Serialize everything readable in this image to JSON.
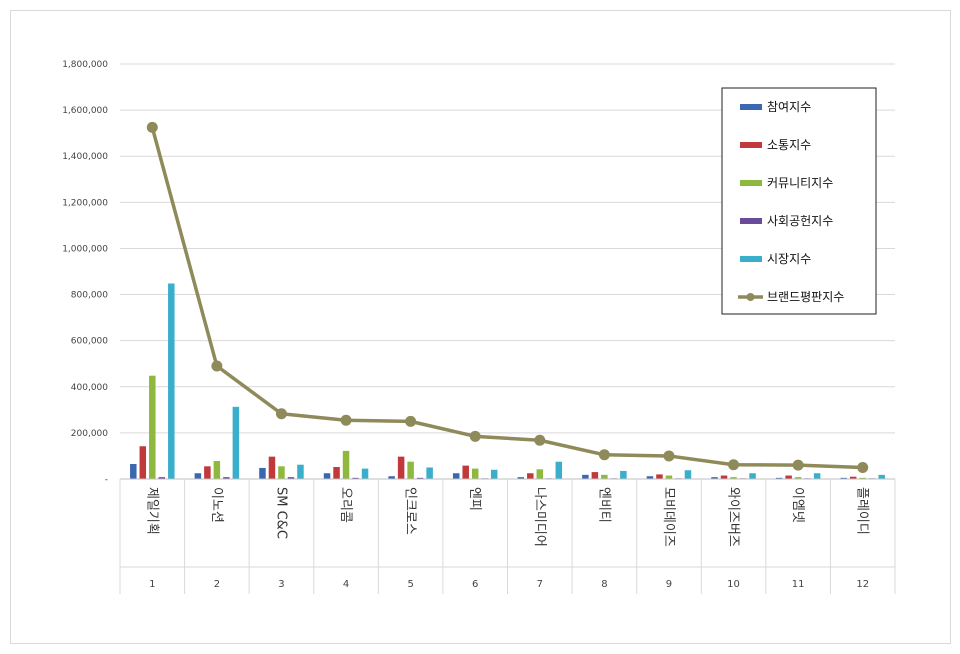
{
  "chart_data": {
    "type": "bar",
    "categories": [
      "제일기획",
      "이노션",
      "SM C&C",
      "오리콤",
      "인크로스",
      "엔피",
      "나스미디어",
      "엔비티",
      "모비데이즈",
      "와이즈버즈",
      "이엠넷",
      "플레이디"
    ],
    "ranks": [
      "1",
      "2",
      "3",
      "4",
      "5",
      "6",
      "7",
      "8",
      "9",
      "10",
      "11",
      "12"
    ],
    "series": [
      {
        "name": "참여지수",
        "type": "bar",
        "color": "#3a68b0",
        "values": [
          65000,
          25000,
          48000,
          25000,
          12000,
          25000,
          8000,
          18000,
          12000,
          8000,
          5000,
          5000
        ]
      },
      {
        "name": "소통지수",
        "type": "bar",
        "color": "#c1393a",
        "values": [
          142000,
          55000,
          97000,
          52000,
          97000,
          58000,
          25000,
          30000,
          20000,
          15000,
          15000,
          10000
        ]
      },
      {
        "name": "커뮤니티지수",
        "type": "bar",
        "color": "#8fb83e",
        "values": [
          448000,
          78000,
          55000,
          122000,
          75000,
          45000,
          42000,
          18000,
          15000,
          8000,
          8000,
          5000
        ]
      },
      {
        "name": "사회공헌지수",
        "type": "bar",
        "color": "#6a4a9b",
        "values": [
          8000,
          8000,
          8000,
          5000,
          5000,
          3000,
          3000,
          3000,
          3000,
          3000,
          3000,
          3000
        ]
      },
      {
        "name": "시장지수",
        "type": "bar",
        "color": "#3aafcc",
        "values": [
          848000,
          313000,
          62000,
          45000,
          50000,
          40000,
          75000,
          35000,
          38000,
          25000,
          25000,
          18000
        ]
      },
      {
        "name": "브랜드평판지수",
        "type": "line",
        "color": "#8f8a5a",
        "values": [
          1525000,
          490000,
          283000,
          255000,
          250000,
          185000,
          168000,
          105000,
          100000,
          62000,
          60000,
          50000
        ]
      }
    ],
    "ylim": [
      0,
      1800000
    ],
    "yticks": [
      {
        "value": 0,
        "label": "-"
      },
      {
        "value": 200000,
        "label": "200,000"
      },
      {
        "value": 400000,
        "label": "400,000"
      },
      {
        "value": 600000,
        "label": "600,000"
      },
      {
        "value": 800000,
        "label": "800,000"
      },
      {
        "value": 1000000,
        "label": "1,000,000"
      },
      {
        "value": 1200000,
        "label": "1,200,000"
      },
      {
        "value": 1400000,
        "label": "1,400,000"
      },
      {
        "value": 1600000,
        "label": "1,600,000"
      },
      {
        "value": 1800000,
        "label": "1,800,000"
      }
    ],
    "grid": true,
    "legend_position": "right"
  }
}
